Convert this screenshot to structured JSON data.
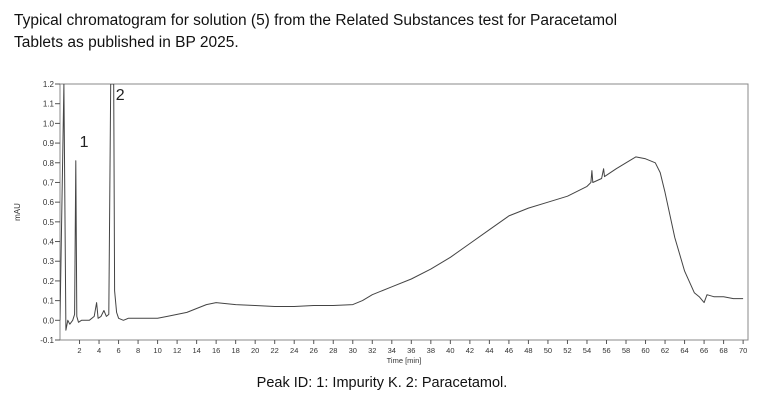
{
  "heading": {
    "line1": "Typical chromatogram for solution (5) from the Related Substances test for Paracetamol",
    "line2": "Tablets as published in BP 2025."
  },
  "caption": "Peak ID: 1: Impurity K. 2: Paracetamol.",
  "chart_data": {
    "type": "line",
    "title": "",
    "xlabel": "Time [min]",
    "ylabel": "mAU",
    "xlim": [
      0,
      70.5
    ],
    "ylim": [
      -0.1,
      1.2
    ],
    "x_ticks": [
      2,
      4,
      6,
      8,
      10,
      12,
      14,
      16,
      18,
      20,
      22,
      24,
      26,
      28,
      30,
      32,
      34,
      36,
      38,
      40,
      42,
      44,
      46,
      48,
      50,
      52,
      54,
      56,
      58,
      60,
      62,
      64,
      66,
      68,
      70
    ],
    "y_ticks": [
      -0.1,
      0.0,
      0.1,
      0.2,
      0.3,
      0.4,
      0.5,
      0.6,
      0.7,
      0.8,
      0.9,
      1.0,
      1.1,
      1.2
    ],
    "y_tick_labels": [
      "-0.1",
      "0.0",
      "0.1",
      "0.2",
      "0.3",
      "0.4",
      "0.5",
      "0.6",
      "0.7",
      "0.8",
      "0.9",
      "1.0",
      "1.1",
      "1.2"
    ],
    "grid": false,
    "line_color": "#444444",
    "peak_labels": [
      {
        "label": "1",
        "x": 1.6,
        "y": 0.88
      },
      {
        "label": "2",
        "x": 5.3,
        "y": 1.12
      }
    ],
    "series": [
      {
        "points": [
          [
            0.0,
            0.0
          ],
          [
            0.4,
            1.2
          ],
          [
            0.6,
            -0.05
          ],
          [
            0.8,
            0.0
          ],
          [
            1.0,
            -0.02
          ],
          [
            1.3,
            0.0
          ],
          [
            1.5,
            0.03
          ],
          [
            1.62,
            0.81
          ],
          [
            1.72,
            0.02
          ],
          [
            1.9,
            -0.01
          ],
          [
            2.2,
            0.0
          ],
          [
            3.0,
            0.0
          ],
          [
            3.5,
            0.02
          ],
          [
            3.75,
            0.09
          ],
          [
            3.9,
            0.01
          ],
          [
            4.2,
            0.02
          ],
          [
            4.5,
            0.05
          ],
          [
            4.75,
            0.02
          ],
          [
            5.0,
            0.03
          ],
          [
            5.2,
            1.2
          ],
          [
            5.5,
            1.2
          ],
          [
            5.6,
            0.15
          ],
          [
            5.8,
            0.04
          ],
          [
            6.0,
            0.01
          ],
          [
            6.5,
            0.0
          ],
          [
            7.0,
            0.01
          ],
          [
            8.0,
            0.01
          ],
          [
            9.0,
            0.01
          ],
          [
            10.0,
            0.01
          ],
          [
            11.0,
            0.02
          ],
          [
            12.0,
            0.03
          ],
          [
            13.0,
            0.04
          ],
          [
            14.0,
            0.06
          ],
          [
            15.0,
            0.08
          ],
          [
            16.0,
            0.09
          ],
          [
            17.0,
            0.085
          ],
          [
            18.0,
            0.08
          ],
          [
            20.0,
            0.075
          ],
          [
            22.0,
            0.07
          ],
          [
            24.0,
            0.07
          ],
          [
            26.0,
            0.075
          ],
          [
            28.0,
            0.075
          ],
          [
            30.0,
            0.08
          ],
          [
            31.0,
            0.1
          ],
          [
            32.0,
            0.13
          ],
          [
            34.0,
            0.17
          ],
          [
            36.0,
            0.21
          ],
          [
            38.0,
            0.26
          ],
          [
            40.0,
            0.32
          ],
          [
            42.0,
            0.39
          ],
          [
            44.0,
            0.46
          ],
          [
            46.0,
            0.53
          ],
          [
            47.0,
            0.55
          ],
          [
            48.0,
            0.57
          ],
          [
            50.0,
            0.6
          ],
          [
            52.0,
            0.63
          ],
          [
            54.0,
            0.68
          ],
          [
            54.4,
            0.7
          ],
          [
            54.5,
            0.76
          ],
          [
            54.6,
            0.7
          ],
          [
            55.5,
            0.72
          ],
          [
            55.7,
            0.77
          ],
          [
            55.8,
            0.73
          ],
          [
            57.0,
            0.77
          ],
          [
            58.0,
            0.8
          ],
          [
            59.0,
            0.83
          ],
          [
            60.0,
            0.82
          ],
          [
            61.0,
            0.8
          ],
          [
            61.5,
            0.75
          ],
          [
            62.0,
            0.65
          ],
          [
            63.0,
            0.42
          ],
          [
            64.0,
            0.25
          ],
          [
            65.0,
            0.14
          ],
          [
            65.5,
            0.12
          ],
          [
            66.0,
            0.09
          ],
          [
            66.3,
            0.13
          ],
          [
            67.0,
            0.12
          ],
          [
            68.0,
            0.12
          ],
          [
            69.0,
            0.11
          ],
          [
            70.0,
            0.11
          ]
        ]
      }
    ]
  }
}
